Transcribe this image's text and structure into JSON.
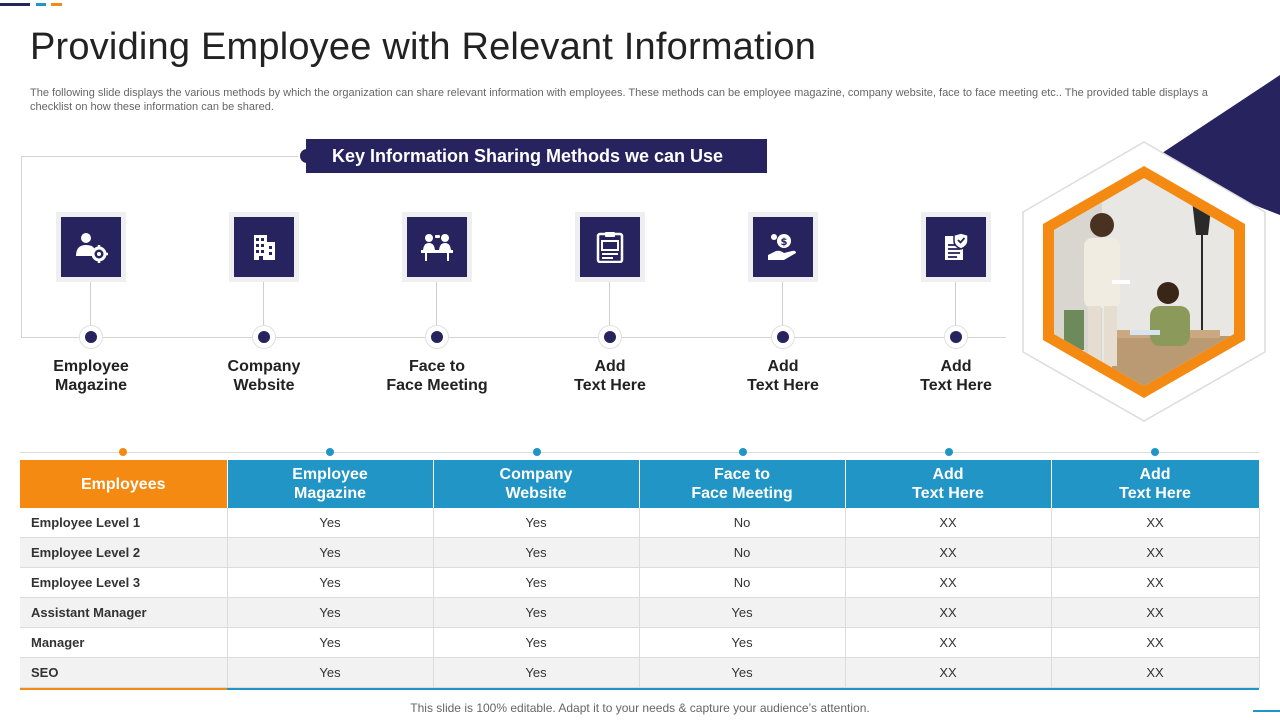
{
  "colors": {
    "navy": "#26235f",
    "orange": "#f48a12",
    "blue": "#2195c6"
  },
  "header": {
    "title": "Providing Employee with Relevant Information",
    "subtitle": "The following slide displays the various methods by which the organization can share relevant information with employees. These methods can  be employee magazine, company website, face to face meeting etc.. The provided table displays a checklist on how these  information can be shared."
  },
  "banner": {
    "text": "Key Information Sharing Methods we can Use"
  },
  "methods": [
    {
      "label": "Employee\nMagazine",
      "icon": "user-gear-icon"
    },
    {
      "label": "Company\nWebsite",
      "icon": "building-icon"
    },
    {
      "label": "Face to\nFace Meeting",
      "icon": "meeting-icon"
    },
    {
      "label": "Add\nText Here",
      "icon": "clipboard-icon"
    },
    {
      "label": "Add\nText Here",
      "icon": "money-hand-icon"
    },
    {
      "label": "Add\nText Here",
      "icon": "shield-document-icon"
    }
  ],
  "table": {
    "headers": [
      "Employees",
      "Employee\nMagazine",
      "Company\nWebsite",
      "Face to\nFace Meeting",
      "Add\nText Here",
      "Add\nText Here"
    ],
    "rows": [
      [
        "Employee Level 1",
        "Yes",
        "Yes",
        "No",
        "XX",
        "XX"
      ],
      [
        "Employee Level 2",
        "Yes",
        "Yes",
        "No",
        "XX",
        "XX"
      ],
      [
        "Employee Level 3",
        "Yes",
        "Yes",
        "No",
        "XX",
        "XX"
      ],
      [
        "Assistant  Manager",
        "Yes",
        "Yes",
        "Yes",
        "XX",
        "XX"
      ],
      [
        "Manager",
        "Yes",
        "Yes",
        "Yes",
        "XX",
        "XX"
      ],
      [
        "SEO",
        "Yes",
        "Yes",
        "Yes",
        "XX",
        "XX"
      ]
    ]
  },
  "footer": {
    "text": "This slide is 100% editable. Adapt it to your needs & capture your audience’s attention."
  }
}
